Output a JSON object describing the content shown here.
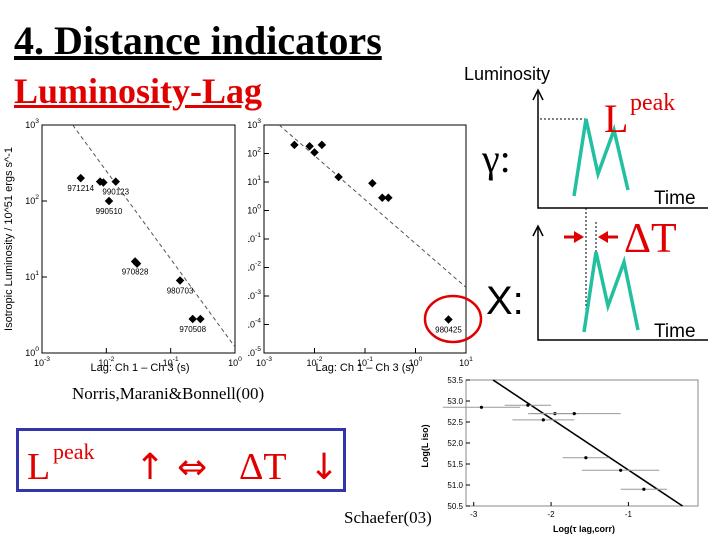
{
  "title": "4. Distance indicators",
  "subtitle": "Luminosity-Lag",
  "credits": {
    "norris": "Norris,Marani&Bonnell(00)",
    "schaefer": "Schaefer(03)"
  },
  "relation": {
    "l_symbol": "L",
    "l_superscript": "peak",
    "up_arrow": "↑",
    "equivalence": "⇔",
    "dt_symbol": "ΔT",
    "down_arrow": "↓"
  },
  "schematic": {
    "luminosity_label": "Luminosity",
    "time_label_top": "Time",
    "time_label_bottom": "Time",
    "gamma_label": "γ:",
    "x_label": "X:",
    "peak_l": "L",
    "peak_sup": "peak",
    "delta_t": "ΔT",
    "pulse_color": "#22c0a0",
    "accent_color": "#e00000"
  },
  "chart_data": [
    {
      "type": "scatter",
      "ylabel": "Isotropic Luminosity / 10^51 ergs s^-1",
      "xlabel": "Lag: Ch 1 – Ch 3 (s)",
      "x_scale": "log",
      "y_scale": "log",
      "xlim": [
        0.001,
        1
      ],
      "ylim": [
        1,
        1000
      ],
      "x_tick_labels": [
        "10^-3",
        "10^-2",
        "10^-1",
        "10^0"
      ],
      "y_tick_labels": [
        "10^0",
        "10^1",
        "10^2",
        "10^3"
      ],
      "points": [
        {
          "x": 0.004,
          "y": 200,
          "label": "971214"
        },
        {
          "x": 0.008,
          "y": 180,
          "label": ""
        },
        {
          "x": 0.009,
          "y": 175,
          "label": ""
        },
        {
          "x": 0.014,
          "y": 180,
          "label": "990123"
        },
        {
          "x": 0.011,
          "y": 100,
          "label": "990510"
        },
        {
          "x": 0.028,
          "y": 16,
          "label": "970828"
        },
        {
          "x": 0.03,
          "y": 15,
          "label": ""
        },
        {
          "x": 0.14,
          "y": 9,
          "label": "980703"
        },
        {
          "x": 0.22,
          "y": 2.8,
          "label": "970508"
        },
        {
          "x": 0.29,
          "y": 2.8,
          "label": ""
        }
      ],
      "fit_line": {
        "x": [
          0.003,
          1
        ],
        "y": [
          1000,
          1.2
        ]
      }
    },
    {
      "type": "scatter",
      "xlabel": "Lag: Ch 1 – Ch 3 (s)",
      "x_scale": "log",
      "y_scale": "log",
      "xlim": [
        0.001,
        10
      ],
      "ylim": [
        1e-05,
        1000
      ],
      "x_tick_labels": [
        "10^-3",
        "10^-2",
        "10^-1",
        "10^0",
        "10^1"
      ],
      "y_tick_labels": [
        "10^-5",
        "10^-4",
        "10^-3",
        "10^-2",
        "10^-1",
        "10^0",
        "10^1",
        "10^2",
        "10^3"
      ],
      "points": [
        {
          "x": 0.004,
          "y": 200,
          "label": ""
        },
        {
          "x": 0.008,
          "y": 180,
          "label": ""
        },
        {
          "x": 0.01,
          "y": 110,
          "label": ""
        },
        {
          "x": 0.014,
          "y": 200,
          "label": ""
        },
        {
          "x": 0.03,
          "y": 15,
          "label": ""
        },
        {
          "x": 0.14,
          "y": 9,
          "label": ""
        },
        {
          "x": 0.22,
          "y": 2.8,
          "label": ""
        },
        {
          "x": 0.29,
          "y": 2.8,
          "label": ""
        },
        {
          "x": 4.5,
          "y": 0.00015,
          "label": "980425"
        }
      ],
      "highlight_label": "980425",
      "fit_line": {
        "x": [
          0.002,
          10
        ],
        "y": [
          1000,
          0.002
        ]
      }
    },
    {
      "type": "scatter",
      "xlabel": "Log(τ lag,corr)",
      "ylabel": "Log(L iso)",
      "xlim": [
        -3.1,
        -0.1
      ],
      "ylim": [
        50.5,
        53.5
      ],
      "x_tick_labels": [
        "-3",
        "-2",
        "-1"
      ],
      "y_tick_labels": [
        "50.5",
        "51.0",
        "51.5",
        "52.0",
        "52.5",
        "53.0",
        "53.5"
      ],
      "points": [
        {
          "x": -2.9,
          "y": 52.85,
          "xerr": 0.5,
          "yerr": 0.0
        },
        {
          "x": -2.3,
          "y": 52.9,
          "xerr": 0.3,
          "yerr": 0.0
        },
        {
          "x": -2.1,
          "y": 52.55,
          "xerr": 0.4,
          "yerr": 0.0
        },
        {
          "x": -1.95,
          "y": 52.7,
          "xerr": 0.3,
          "yerr": 0.0
        },
        {
          "x": -1.7,
          "y": 52.7,
          "xerr": 0.6,
          "yerr": 0.0
        },
        {
          "x": -1.55,
          "y": 51.65,
          "xerr": 0.3,
          "yerr": 0.0
        },
        {
          "x": -1.1,
          "y": 51.35,
          "xerr": 0.5,
          "yerr": 0.0
        },
        {
          "x": -0.8,
          "y": 50.9,
          "xerr": 0.3,
          "yerr": 0.0
        }
      ],
      "fit_line": {
        "x": [
          -2.75,
          -0.3
        ],
        "y": [
          53.5,
          50.5
        ]
      }
    }
  ]
}
